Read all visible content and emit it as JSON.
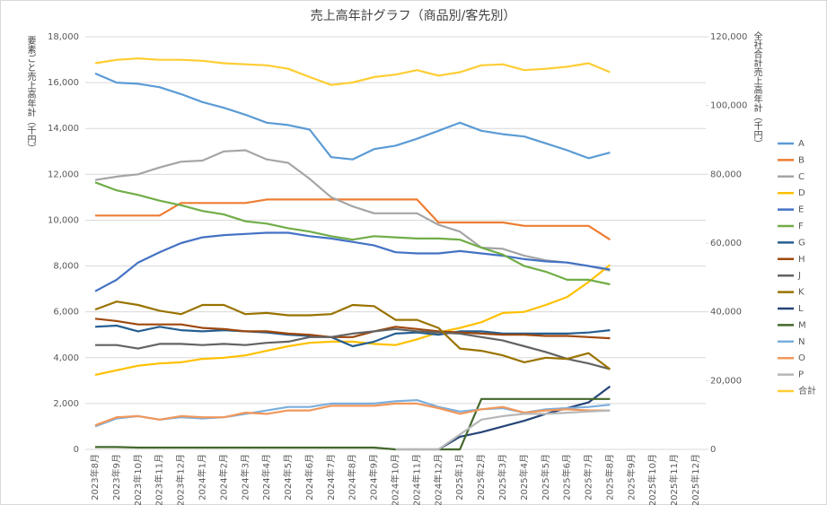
{
  "chart_data": {
    "type": "line",
    "title": "売上高年計グラフ（商品別/客先別）",
    "y_label": "要素ごと売上高年計（千円）",
    "y2_label": "全社合計売上高年計（千円）",
    "categories": [
      "2023年8月",
      "2023年9月",
      "2023年10月",
      "2023年11月",
      "2023年12月",
      "2024年1月",
      "2024年2月",
      "2024年3月",
      "2024年4月",
      "2024年5月",
      "2024年6月",
      "2024年7月",
      "2024年8月",
      "2024年9月",
      "2024年10月",
      "2024年11月",
      "2024年12月",
      "2025年1月",
      "2025年2月",
      "2025年3月",
      "2025年4月",
      "2025年5月",
      "2025年6月",
      "2025年7月",
      "2025年8月",
      "2025年9月",
      "2025年10月",
      "2025年11月",
      "2025年12月"
    ],
    "ylim": [
      0,
      18000
    ],
    "yticks": [
      {
        "value": 0,
        "label": "0"
      },
      {
        "value": 2000,
        "label": "2,000"
      },
      {
        "value": 4000,
        "label": "4,000"
      },
      {
        "value": 6000,
        "label": "6,000"
      },
      {
        "value": 8000,
        "label": "8,000"
      },
      {
        "value": 10000,
        "label": "10,000"
      },
      {
        "value": 12000,
        "label": "12,000"
      },
      {
        "value": 14000,
        "label": "14,000"
      },
      {
        "value": 16000,
        "label": "16,000"
      },
      {
        "value": 18000,
        "label": "18,000"
      }
    ],
    "y2lim": [
      0,
      120000
    ],
    "y2ticks": [
      {
        "value": 0,
        "label": "0"
      },
      {
        "value": 20000,
        "label": "20,000"
      },
      {
        "value": 40000,
        "label": "40,000"
      },
      {
        "value": 60000,
        "label": "60,000"
      },
      {
        "value": 80000,
        "label": "80,000"
      },
      {
        "value": 100000,
        "label": "100,000"
      },
      {
        "value": 120000,
        "label": "120,000"
      }
    ],
    "grid": true,
    "legend": "right",
    "series": [
      {
        "name": "A",
        "color": "#5b9bd5",
        "values": [
          16400,
          16000,
          15950,
          15800,
          15500,
          15150,
          14900,
          14600,
          14250,
          14150,
          13950,
          12750,
          12650,
          13100,
          13250,
          13550,
          13900,
          14250,
          13900,
          13750,
          13650,
          13350,
          13050,
          12700,
          12950,
          null,
          null,
          null,
          null
        ]
      },
      {
        "name": "B",
        "color": "#ed7d31",
        "values": [
          10200,
          10200,
          10200,
          10200,
          10750,
          10750,
          10750,
          10750,
          10900,
          10900,
          10900,
          10900,
          10900,
          10900,
          10900,
          10900,
          9900,
          9900,
          9900,
          9900,
          9750,
          9750,
          9750,
          9750,
          9150,
          null,
          null,
          null,
          null
        ]
      },
      {
        "name": "C",
        "color": "#a5a5a5",
        "values": [
          11750,
          11900,
          12000,
          12300,
          12550,
          12600,
          13000,
          13050,
          12650,
          12500,
          11800,
          11000,
          10600,
          10300,
          10300,
          10300,
          9800,
          9500,
          8800,
          8750,
          8450,
          8250,
          8150,
          8000,
          7800,
          null,
          null,
          null,
          null
        ]
      },
      {
        "name": "D",
        "color": "#ffc000",
        "values": [
          3250,
          3450,
          3650,
          3750,
          3800,
          3950,
          4000,
          4100,
          4300,
          4500,
          4650,
          4700,
          4700,
          4600,
          4550,
          4800,
          5100,
          5300,
          5550,
          5950,
          6000,
          6300,
          6650,
          7300,
          8050,
          null,
          null,
          null,
          null
        ]
      },
      {
        "name": "E",
        "color": "#4472c4",
        "values": [
          6900,
          7400,
          8150,
          8600,
          9000,
          9250,
          9350,
          9400,
          9450,
          9450,
          9300,
          9200,
          9050,
          8900,
          8600,
          8550,
          8550,
          8650,
          8550,
          8450,
          8300,
          8200,
          8150,
          8000,
          7850,
          null,
          null,
          null,
          null
        ]
      },
      {
        "name": "F",
        "color": "#70ad47",
        "values": [
          11650,
          11300,
          11100,
          10850,
          10650,
          10400,
          10250,
          9950,
          9850,
          9650,
          9500,
          9300,
          9150,
          9300,
          9250,
          9200,
          9200,
          9150,
          8800,
          8500,
          8000,
          7750,
          7400,
          7400,
          7200,
          null,
          null,
          null,
          null
        ]
      },
      {
        "name": "G",
        "color": "#255e91",
        "values": [
          5350,
          5400,
          5150,
          5350,
          5200,
          5150,
          5200,
          5150,
          5100,
          5000,
          4950,
          4900,
          4500,
          4700,
          5050,
          5100,
          5000,
          5150,
          5150,
          5050,
          5050,
          5050,
          5050,
          5100,
          5200,
          null,
          null,
          null,
          null
        ]
      },
      {
        "name": "H",
        "color": "#9e480e",
        "values": [
          5700,
          5600,
          5450,
          5450,
          5450,
          5300,
          5250,
          5150,
          5150,
          5050,
          5000,
          4900,
          4900,
          5150,
          5350,
          5250,
          5150,
          5100,
          5050,
          5000,
          5000,
          4950,
          4950,
          4900,
          4850,
          null,
          null,
          null,
          null
        ]
      },
      {
        "name": "J",
        "color": "#636363",
        "values": [
          4550,
          4550,
          4400,
          4600,
          4600,
          4550,
          4600,
          4550,
          4650,
          4700,
          4900,
          4900,
          5050,
          5150,
          5250,
          5150,
          5100,
          5050,
          4900,
          4750,
          4500,
          4250,
          3950,
          3750,
          3500,
          null,
          null,
          null,
          null
        ]
      },
      {
        "name": "K",
        "color": "#997300",
        "values": [
          6100,
          6450,
          6300,
          6050,
          5900,
          6300,
          6300,
          5900,
          5950,
          5850,
          5850,
          5900,
          6300,
          6250,
          5650,
          5650,
          5300,
          4400,
          4300,
          4100,
          3800,
          4000,
          3950,
          4200,
          3500,
          null,
          null,
          null,
          null
        ]
      },
      {
        "name": "L",
        "color": "#264478",
        "values": [
          null,
          null,
          null,
          null,
          null,
          null,
          null,
          null,
          null,
          null,
          null,
          null,
          null,
          null,
          null,
          null,
          0,
          550,
          750,
          1000,
          1250,
          1550,
          1800,
          2050,
          2750,
          null,
          null,
          null,
          null
        ]
      },
      {
        "name": "M",
        "color": "#43682b",
        "values": [
          100,
          100,
          80,
          80,
          80,
          80,
          80,
          80,
          80,
          80,
          80,
          80,
          80,
          80,
          0,
          0,
          0,
          0,
          2200,
          2200,
          2200,
          2200,
          2200,
          2200,
          2200,
          null,
          null,
          null,
          null
        ]
      },
      {
        "name": "N",
        "color": "#7cafdd",
        "values": [
          1000,
          1350,
          1450,
          1300,
          1400,
          1350,
          1400,
          1550,
          1700,
          1850,
          1850,
          2000,
          2000,
          2000,
          2100,
          2150,
          1850,
          1650,
          1750,
          1800,
          1600,
          1750,
          1800,
          1850,
          1950,
          null,
          null,
          null,
          null
        ]
      },
      {
        "name": "O",
        "color": "#f1975a",
        "values": [
          1050,
          1400,
          1450,
          1300,
          1450,
          1400,
          1400,
          1600,
          1550,
          1700,
          1700,
          1900,
          1900,
          1900,
          2000,
          2000,
          1800,
          1550,
          1750,
          1850,
          1600,
          1700,
          1750,
          1700,
          1700,
          null,
          null,
          null,
          null
        ]
      },
      {
        "name": "P",
        "color": "#b7b7b7",
        "values": [
          null,
          null,
          null,
          null,
          null,
          null,
          null,
          null,
          null,
          null,
          null,
          null,
          null,
          null,
          0,
          0,
          0,
          650,
          1300,
          1450,
          1550,
          1550,
          1600,
          1650,
          1700,
          null,
          null,
          null,
          null
        ]
      },
      {
        "name": "合計",
        "color": "#ffcd33",
        "axis": "y2",
        "values": [
          112300,
          113300,
          113700,
          113300,
          113300,
          113000,
          112300,
          112000,
          111700,
          110700,
          108300,
          106000,
          106700,
          108300,
          109000,
          110300,
          108700,
          109700,
          111700,
          112000,
          110300,
          110700,
          111300,
          112300,
          109700,
          null,
          null,
          null,
          null
        ]
      }
    ]
  }
}
